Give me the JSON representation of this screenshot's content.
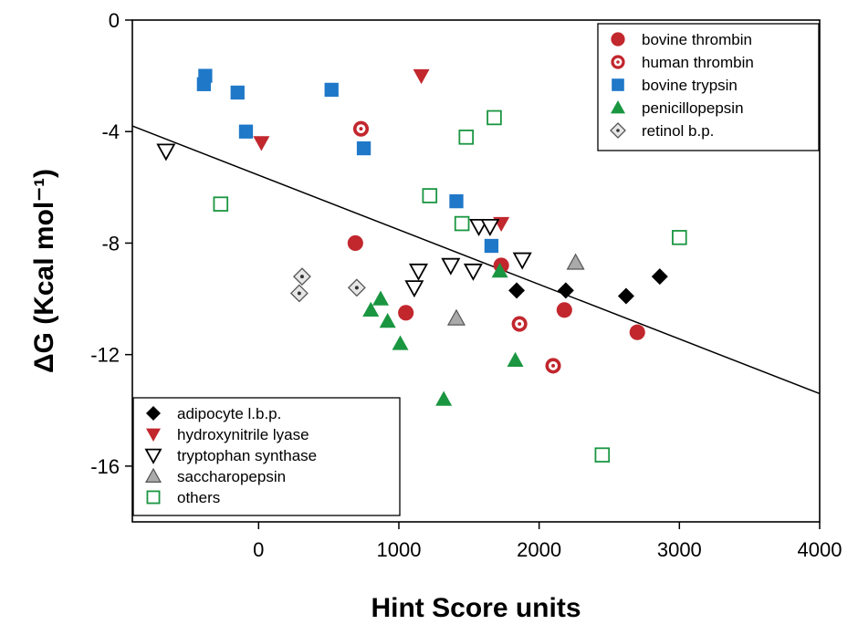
{
  "chart_data": {
    "type": "scatter",
    "title": "",
    "xlabel": "Hint Score units",
    "ylabel": "ΔG (Kcal mol⁻¹)",
    "xlim": [
      -900,
      4000
    ],
    "ylim": [
      -18,
      0
    ],
    "x_ticks": [
      "0",
      "1000",
      "2000",
      "3000",
      "4000"
    ],
    "y_ticks": [
      "0",
      "-4",
      "-8",
      "-12",
      "-16"
    ],
    "grid": false,
    "legends": [
      {
        "placement": "top-right",
        "entries": [
          "bovine thrombin",
          "human thrombin",
          "bovine trypsin",
          "penicillopepsin",
          "retinol b.p."
        ]
      },
      {
        "placement": "bottom-left",
        "entries": [
          "adipocyte l.b.p.",
          "hydroxynitrile lyase",
          "tryptophan synthase",
          "saccharopepsin",
          "others"
        ]
      }
    ],
    "regression_line": {
      "x": [
        -900,
        4000
      ],
      "y": [
        -3.8,
        -13.4
      ]
    },
    "series": [
      {
        "name": "bovine thrombin",
        "marker": "circle",
        "color": "#c1272d",
        "points": [
          [
            690,
            -8.0
          ],
          [
            1050,
            -10.5
          ],
          [
            1730,
            -8.8
          ],
          [
            2180,
            -10.4
          ],
          [
            2700,
            -11.2
          ]
        ]
      },
      {
        "name": "human thrombin",
        "marker": "circle-dot",
        "color": "#c1272d",
        "points": [
          [
            730,
            -3.9
          ],
          [
            1860,
            -10.9
          ],
          [
            2100,
            -12.4
          ]
        ]
      },
      {
        "name": "bovine trypsin",
        "marker": "square",
        "color": "#1f78c8",
        "points": [
          [
            -380,
            -2.0
          ],
          [
            -390,
            -2.3
          ],
          [
            -150,
            -2.6
          ],
          [
            520,
            -2.5
          ],
          [
            -90,
            -4.0
          ],
          [
            750,
            -4.6
          ],
          [
            1410,
            -6.5
          ],
          [
            1660,
            -8.1
          ]
        ]
      },
      {
        "name": "penicillopepsin",
        "marker": "triangle-up",
        "color": "#1a9641",
        "points": [
          [
            800,
            -10.4
          ],
          [
            870,
            -10.0
          ],
          [
            920,
            -10.8
          ],
          [
            1010,
            -11.6
          ],
          [
            1320,
            -13.6
          ],
          [
            1720,
            -9.0
          ],
          [
            1830,
            -12.2
          ]
        ]
      },
      {
        "name": "retinol b.p.",
        "marker": "diamond-dot",
        "color": "#888888",
        "points": [
          [
            290,
            -9.8
          ],
          [
            310,
            -9.2
          ],
          [
            700,
            -9.6
          ]
        ]
      },
      {
        "name": "adipocyte l.b.p.",
        "marker": "diamond",
        "color": "#000000",
        "points": [
          [
            1840,
            -9.7
          ],
          [
            2190,
            -9.7
          ],
          [
            2620,
            -9.9
          ],
          [
            2860,
            -9.2
          ]
        ]
      },
      {
        "name": "hydroxynitrile lyase",
        "marker": "triangle-down",
        "color": "#c1272d",
        "points": [
          [
            1160,
            -2.0
          ],
          [
            20,
            -4.4
          ],
          [
            1730,
            -7.3
          ]
        ]
      },
      {
        "name": "tryptophan synthase",
        "marker": "triangle-down-open",
        "color": "#000000",
        "points": [
          [
            -660,
            -4.7
          ],
          [
            1140,
            -9.0
          ],
          [
            1110,
            -9.6
          ],
          [
            1370,
            -8.8
          ],
          [
            1530,
            -9.0
          ],
          [
            1570,
            -7.4
          ],
          [
            1650,
            -7.4
          ],
          [
            1880,
            -8.6
          ]
        ]
      },
      {
        "name": "saccharopepsin",
        "marker": "triangle-up-gray",
        "color": "#aaaaaa",
        "points": [
          [
            1410,
            -10.7
          ],
          [
            2260,
            -8.7
          ]
        ]
      },
      {
        "name": "others",
        "marker": "square-open",
        "color": "#1a9641",
        "points": [
          [
            -270,
            -6.6
          ],
          [
            1220,
            -6.3
          ],
          [
            1450,
            -7.3
          ],
          [
            1480,
            -4.2
          ],
          [
            1680,
            -3.5
          ],
          [
            2450,
            -15.6
          ],
          [
            3000,
            -7.8
          ]
        ]
      }
    ]
  }
}
